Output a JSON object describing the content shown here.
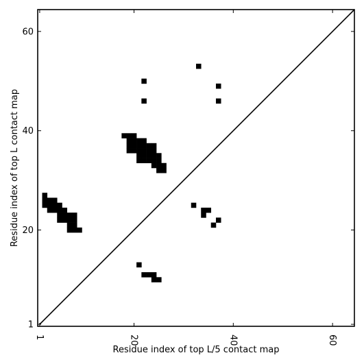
{
  "chart_data": {
    "type": "scatter",
    "title": "",
    "xlabel": "Residue index of top L/5 contact map",
    "ylabel": "Residue index of top L contact map",
    "xlim": [
      1,
      64
    ],
    "ylim": [
      1,
      64
    ],
    "xticks": [
      {
        "value": 1,
        "label": "1"
      },
      {
        "value": 20,
        "label": "20"
      },
      {
        "value": 40,
        "label": "40"
      },
      {
        "value": 60,
        "label": "60"
      }
    ],
    "yticks": [
      {
        "value": 1,
        "label": "1"
      },
      {
        "value": 20,
        "label": "20"
      },
      {
        "value": 40,
        "label": "40"
      },
      {
        "value": 60,
        "label": "60"
      }
    ],
    "diagonal": true,
    "grid": false,
    "colors": {
      "marks": "#000000",
      "axes": "#000000",
      "background": "#ffffff"
    },
    "series": [
      {
        "points": [
          [
            2,
            27
          ],
          [
            2,
            26
          ],
          [
            2,
            25
          ],
          [
            3,
            26
          ],
          [
            3,
            25
          ],
          [
            3,
            24
          ],
          [
            4,
            26
          ],
          [
            4,
            25
          ],
          [
            4,
            24
          ],
          [
            5,
            25
          ],
          [
            5,
            24
          ],
          [
            5,
            23
          ],
          [
            5,
            22
          ],
          [
            6,
            24
          ],
          [
            6,
            23
          ],
          [
            6,
            22
          ],
          [
            7,
            23
          ],
          [
            7,
            22
          ],
          [
            7,
            21
          ],
          [
            7,
            20
          ],
          [
            8,
            23
          ],
          [
            8,
            22
          ],
          [
            8,
            21
          ],
          [
            8,
            20
          ],
          [
            9,
            20
          ],
          [
            18,
            39
          ],
          [
            19,
            39
          ],
          [
            19,
            38
          ],
          [
            19,
            37
          ],
          [
            19,
            36
          ],
          [
            20,
            39
          ],
          [
            20,
            38
          ],
          [
            20,
            37
          ],
          [
            20,
            36
          ],
          [
            21,
            38
          ],
          [
            21,
            37
          ],
          [
            21,
            36
          ],
          [
            21,
            35
          ],
          [
            21,
            34
          ],
          [
            22,
            38
          ],
          [
            22,
            37
          ],
          [
            22,
            36
          ],
          [
            22,
            35
          ],
          [
            22,
            34
          ],
          [
            23,
            37
          ],
          [
            23,
            36
          ],
          [
            23,
            35
          ],
          [
            23,
            34
          ],
          [
            24,
            37
          ],
          [
            24,
            36
          ],
          [
            24,
            35
          ],
          [
            24,
            34
          ],
          [
            24,
            33
          ],
          [
            25,
            35
          ],
          [
            25,
            34
          ],
          [
            25,
            33
          ],
          [
            25,
            32
          ],
          [
            26,
            33
          ],
          [
            26,
            32
          ],
          [
            33,
            53
          ],
          [
            37,
            49
          ],
          [
            37,
            46
          ],
          [
            22,
            50
          ],
          [
            22,
            46
          ],
          [
            32,
            25
          ],
          [
            34,
            24
          ],
          [
            34,
            23
          ],
          [
            35,
            24
          ],
          [
            37,
            22
          ],
          [
            36,
            21
          ],
          [
            21,
            13
          ],
          [
            22,
            11
          ],
          [
            23,
            11
          ],
          [
            24,
            11
          ],
          [
            24,
            10
          ],
          [
            25,
            10
          ]
        ]
      }
    ]
  }
}
